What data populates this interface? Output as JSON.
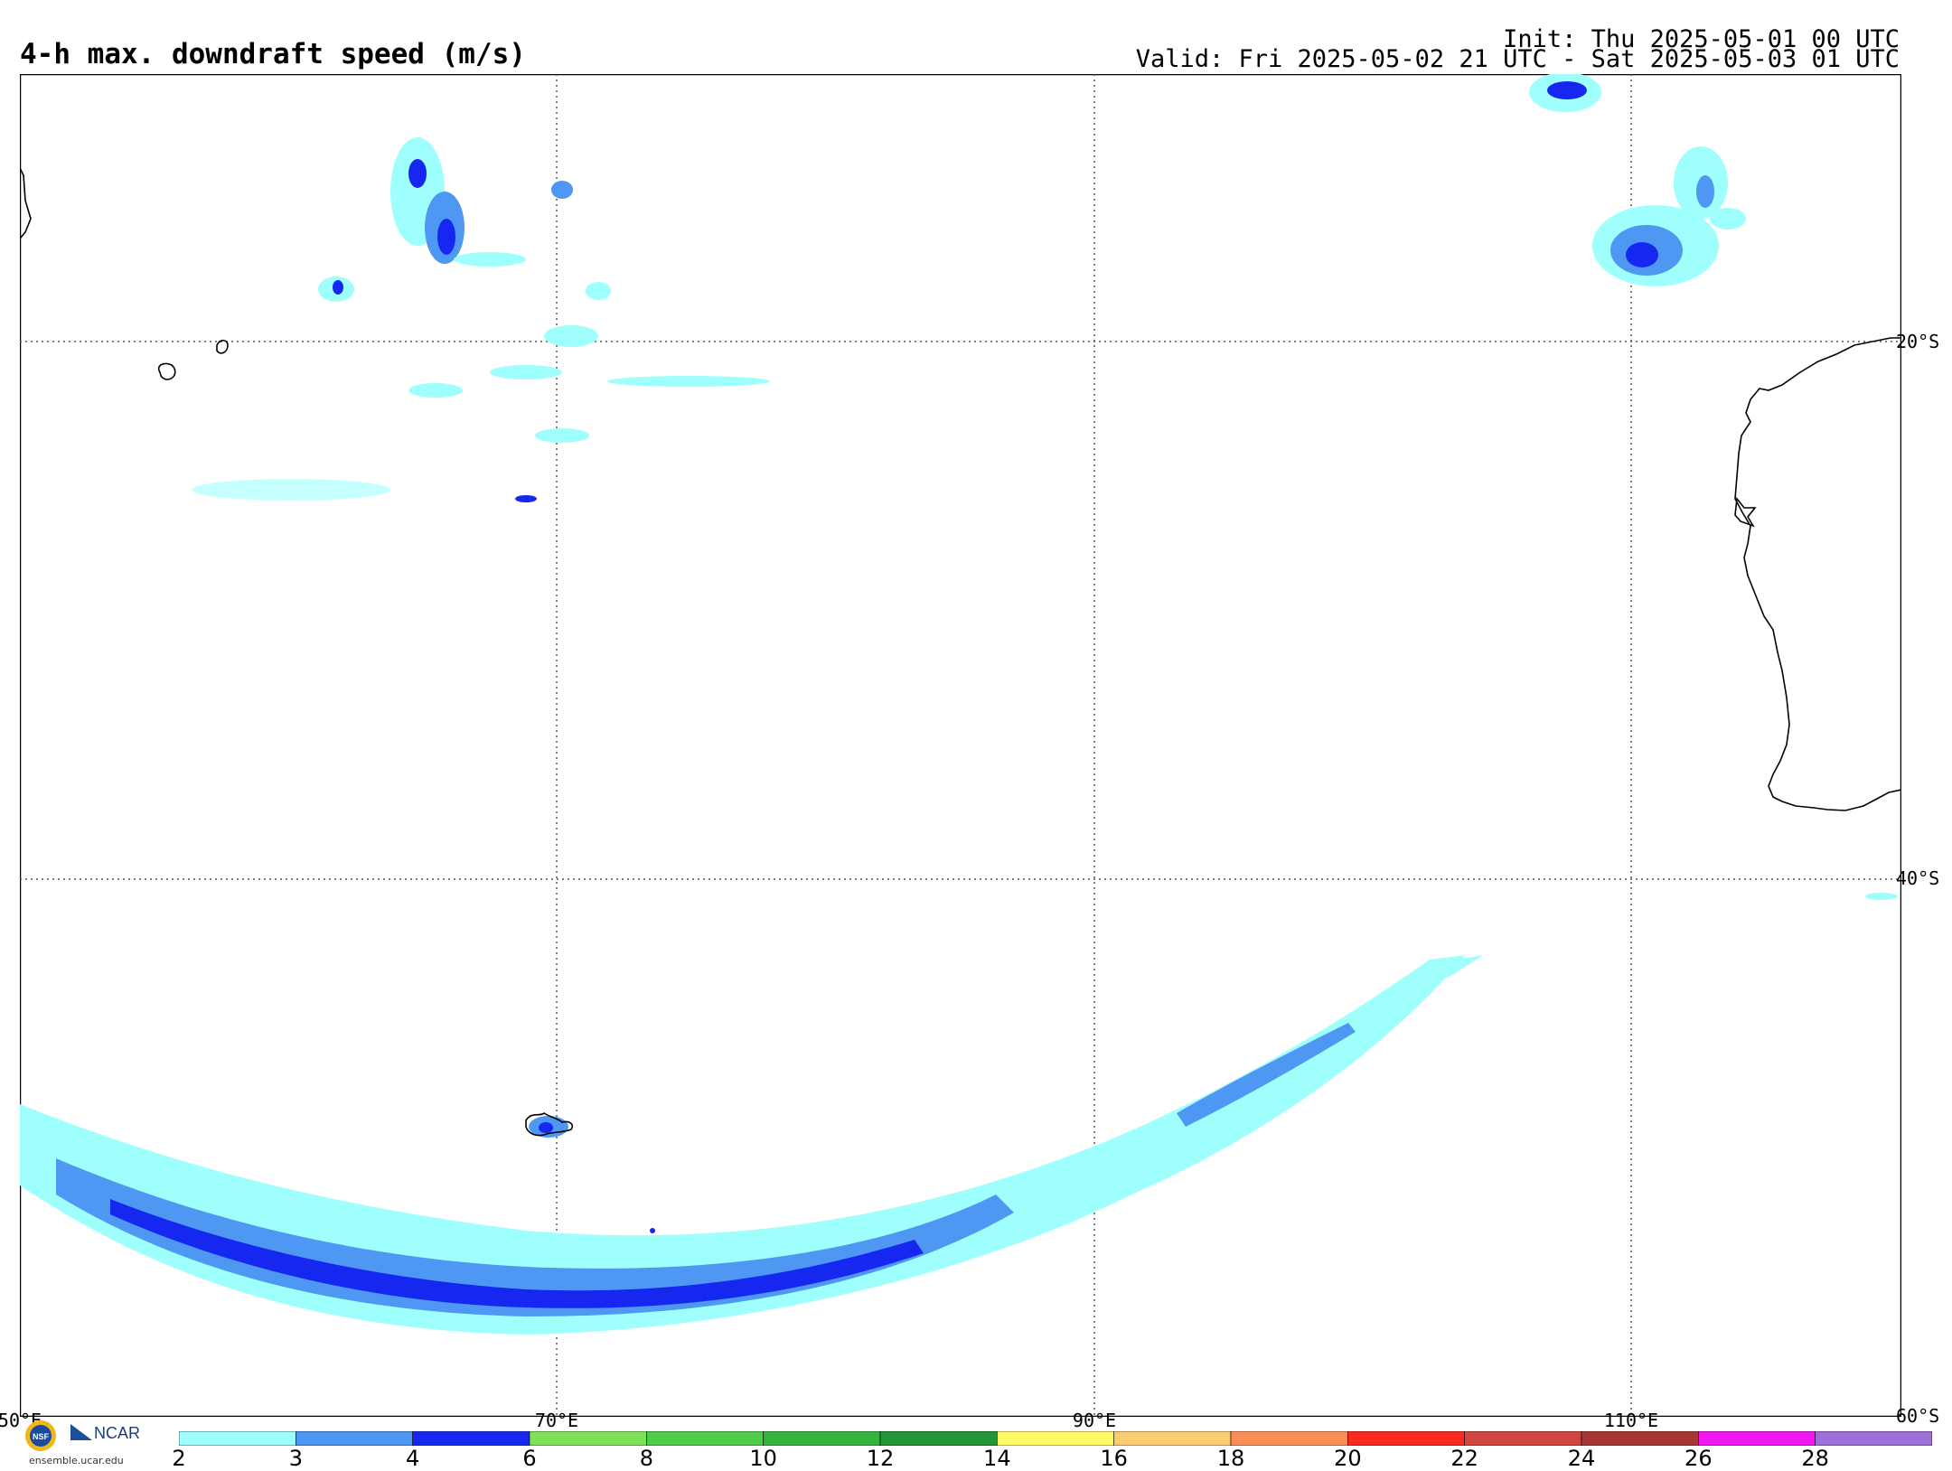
{
  "header": {
    "title": "4-h max. downdraft speed (m/s)",
    "init": "Init: Thu 2025-05-01 00 UTC",
    "valid": "Valid: Fri 2025-05-02 21 UTC - Sat 2025-05-03 01 UTC"
  },
  "map": {
    "projection": "lat-lon",
    "lon_labels": [
      "50°E",
      "70°E",
      "90°E",
      "110°E"
    ],
    "lat_labels": [
      "20°S",
      "40°S",
      "60°S"
    ],
    "gridlines": "dotted"
  },
  "colorbar": {
    "labels": [
      "2",
      "3",
      "4",
      "6",
      "8",
      "10",
      "12",
      "14",
      "16",
      "18",
      "20",
      "22",
      "24",
      "26",
      "28"
    ],
    "colors": [
      "#9ffffd",
      "#4e97f2",
      "#1628ef",
      "#7fe05a",
      "#4fcc4a",
      "#34b33e",
      "#26953a",
      "#fdfb65",
      "#fbcb71",
      "#fb8d57",
      "#fb2a21",
      "#cf4643",
      "#a53633",
      "#f318f1",
      "#9c70d6"
    ]
  },
  "credits": {
    "logo_nsf": "NSF",
    "logo_ncar": "NCAR",
    "url": "ensemble.ucar.edu"
  }
}
